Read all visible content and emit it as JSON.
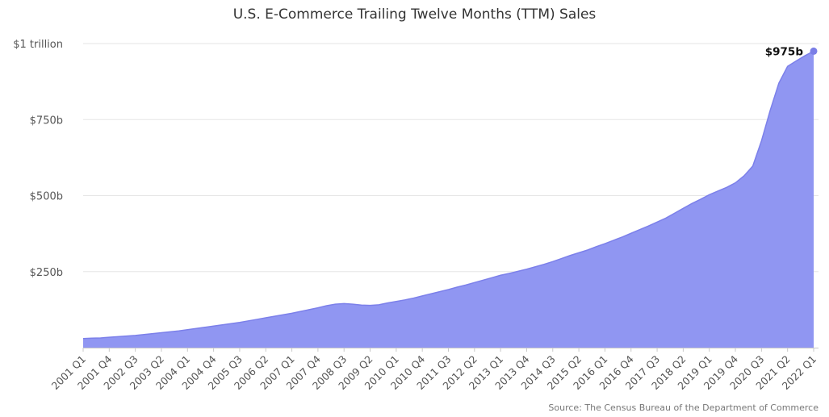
{
  "chart_data": {
    "type": "area",
    "title": "U.S. E-Commerce Trailing Twelve Months (TTM) Sales",
    "xlabel": "",
    "ylabel": "",
    "ylim": [
      0,
      1000
    ],
    "unit": "billions of dollars",
    "grid": true,
    "legend": "none",
    "yticks": [
      {
        "value": 250,
        "label": "$250b"
      },
      {
        "value": 500,
        "label": "$500b"
      },
      {
        "value": 750,
        "label": "$750b"
      },
      {
        "value": 1000,
        "label": "$1 trillion"
      }
    ],
    "xtick_labels": [
      "2001 Q1",
      "2001 Q4",
      "2002 Q3",
      "2003 Q2",
      "2004 Q1",
      "2004 Q4",
      "2005 Q3",
      "2006 Q2",
      "2007 Q1",
      "2007 Q4",
      "2008 Q3",
      "2009 Q2",
      "2010 Q1",
      "2010 Q4",
      "2011 Q3",
      "2012 Q2",
      "2013 Q1",
      "2013 Q4",
      "2014 Q3",
      "2015 Q2",
      "2016 Q1",
      "2016 Q4",
      "2017 Q3",
      "2018 Q2",
      "2019 Q1",
      "2019 Q4",
      "2020 Q3",
      "2021 Q2",
      "2022 Q1"
    ],
    "x": [
      "2001 Q1",
      "2001 Q2",
      "2001 Q3",
      "2001 Q4",
      "2002 Q1",
      "2002 Q2",
      "2002 Q3",
      "2002 Q4",
      "2003 Q1",
      "2003 Q2",
      "2003 Q3",
      "2003 Q4",
      "2004 Q1",
      "2004 Q2",
      "2004 Q3",
      "2004 Q4",
      "2005 Q1",
      "2005 Q2",
      "2005 Q3",
      "2005 Q4",
      "2006 Q1",
      "2006 Q2",
      "2006 Q3",
      "2006 Q4",
      "2007 Q1",
      "2007 Q2",
      "2007 Q3",
      "2007 Q4",
      "2008 Q1",
      "2008 Q2",
      "2008 Q3",
      "2008 Q4",
      "2009 Q1",
      "2009 Q2",
      "2009 Q3",
      "2009 Q4",
      "2010 Q1",
      "2010 Q2",
      "2010 Q3",
      "2010 Q4",
      "2011 Q1",
      "2011 Q2",
      "2011 Q3",
      "2011 Q4",
      "2012 Q1",
      "2012 Q2",
      "2012 Q3",
      "2012 Q4",
      "2013 Q1",
      "2013 Q2",
      "2013 Q3",
      "2013 Q4",
      "2014 Q1",
      "2014 Q2",
      "2014 Q3",
      "2014 Q4",
      "2015 Q1",
      "2015 Q2",
      "2015 Q3",
      "2015 Q4",
      "2016 Q1",
      "2016 Q2",
      "2016 Q3",
      "2016 Q4",
      "2017 Q1",
      "2017 Q2",
      "2017 Q3",
      "2017 Q4",
      "2018 Q1",
      "2018 Q2",
      "2018 Q3",
      "2018 Q4",
      "2019 Q1",
      "2019 Q2",
      "2019 Q3",
      "2019 Q4",
      "2020 Q1",
      "2020 Q2",
      "2020 Q3",
      "2020 Q4",
      "2021 Q1",
      "2021 Q2",
      "2021 Q3",
      "2021 Q4",
      "2022 Q1"
    ],
    "series": [
      {
        "values": [
          30,
          31,
          32,
          34,
          36,
          38,
          40,
          43,
          46,
          49,
          52,
          55,
          59,
          63,
          67,
          71,
          75,
          79,
          83,
          88,
          93,
          98,
          103,
          108,
          113,
          119,
          125,
          131,
          138,
          143,
          145,
          143,
          140,
          139,
          141,
          147,
          152,
          157,
          163,
          170,
          177,
          184,
          191,
          199,
          206,
          214,
          222,
          230,
          238,
          244,
          251,
          258,
          266,
          274,
          283,
          293,
          303,
          312,
          321,
          332,
          342,
          353,
          364,
          376,
          388,
          400,
          413,
          426,
          442,
          458,
          474,
          488,
          503,
          515,
          527,
          542,
          565,
          597,
          680,
          780,
          870,
          925,
          943,
          960,
          975
        ]
      }
    ],
    "annotation": {
      "label": "$975b",
      "category": "2022 Q1",
      "value": 975
    },
    "colors": {
      "area": "#9096f2",
      "line": "#7c80ea",
      "marker": "#7a7ee6",
      "grid": "#e6e6e6",
      "baseline": "#c8c8c8"
    },
    "source": "Source: The Census Bureau of the Department of Commerce"
  }
}
